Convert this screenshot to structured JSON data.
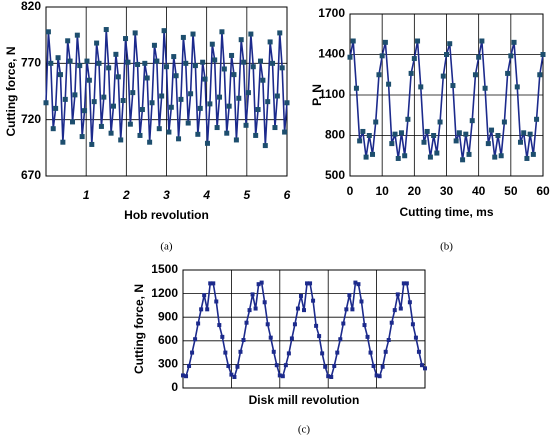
{
  "chart_data": [
    {
      "type": "line",
      "caption": "(a)",
      "xlabel": "Hob revolution",
      "ylabel": "Cutting force, N",
      "xlim": [
        0,
        6
      ],
      "xticks": [
        1,
        2,
        3,
        4,
        5,
        6
      ],
      "xtick_italic": true,
      "ylim": [
        670,
        820
      ],
      "yticks": [
        670,
        720,
        770,
        820
      ],
      "grid": true,
      "series": [
        {
          "name": null,
          "color": "#1c2a8c",
          "marker_color": "#1d4e6e",
          "x": [
            0,
            0.06,
            0.12,
            0.18,
            0.24,
            0.3,
            0.36,
            0.42,
            0.48,
            0.54,
            0.6,
            0.66,
            0.72,
            0.78,
            0.84,
            0.9,
            0.96,
            1.02,
            1.08,
            1.14,
            1.2,
            1.26,
            1.32,
            1.38,
            1.44,
            1.5,
            1.56,
            1.62,
            1.68,
            1.74,
            1.8,
            1.86,
            1.92,
            1.98,
            2.04,
            2.1,
            2.16,
            2.22,
            2.28,
            2.34,
            2.4,
            2.46,
            2.52,
            2.58,
            2.64,
            2.7,
            2.76,
            2.82,
            2.88,
            2.94,
            3,
            3.06,
            3.12,
            3.18,
            3.24,
            3.3,
            3.36,
            3.42,
            3.48,
            3.54,
            3.6,
            3.66,
            3.72,
            3.78,
            3.84,
            3.9,
            3.96,
            4.02,
            4.08,
            4.14,
            4.2,
            4.26,
            4.32,
            4.38,
            4.44,
            4.5,
            4.56,
            4.62,
            4.68,
            4.74,
            4.8,
            4.86,
            4.92,
            4.98,
            5.04,
            5.1,
            5.16,
            5.22,
            5.28,
            5.34,
            5.4,
            5.46,
            5.52,
            5.58,
            5.64,
            5.7,
            5.76,
            5.82,
            5.88,
            5.94,
            6
          ],
          "values": [
            735,
            798,
            770,
            712,
            730,
            775,
            760,
            700,
            738,
            790,
            772,
            718,
            742,
            795,
            768,
            705,
            728,
            772,
            755,
            698,
            736,
            788,
            770,
            714,
            740,
            800,
            766,
            708,
            732,
            778,
            758,
            702,
            737,
            792,
            771,
            716,
            744,
            797,
            769,
            706,
            729,
            770,
            757,
            700,
            735,
            786,
            772,
            712,
            741,
            799,
            767,
            709,
            731,
            776,
            759,
            703,
            738,
            793,
            770,
            717,
            743,
            796,
            768,
            707,
            730,
            771,
            756,
            699,
            734,
            787,
            773,
            713,
            740,
            798,
            765,
            708,
            732,
            777,
            760,
            702,
            739,
            791,
            771,
            715,
            744,
            796,
            767,
            706,
            729,
            772,
            755,
            697,
            736,
            789,
            770,
            713,
            741,
            797,
            766,
            709,
            735
          ]
        }
      ]
    },
    {
      "type": "line",
      "caption": "(b)",
      "xlabel": "Cutting time, ms",
      "ylabel": "P, N",
      "xlim": [
        0,
        60
      ],
      "xticks": [
        0,
        10,
        20,
        30,
        40,
        50,
        60
      ],
      "ylim": [
        500,
        1700
      ],
      "yticks": [
        500,
        800,
        1100,
        1400,
        1700
      ],
      "grid": true,
      "series": [
        {
          "name": null,
          "color": "#1c2a8c",
          "marker_color": "#1d4e6e",
          "x": [
            0,
            1,
            2,
            3,
            4,
            5,
            6,
            7,
            8,
            9,
            10,
            11,
            12,
            13,
            14,
            15,
            16,
            17,
            18,
            19,
            20,
            21,
            22,
            23,
            24,
            25,
            26,
            27,
            28,
            29,
            30,
            31,
            32,
            33,
            34,
            35,
            36,
            37,
            38,
            39,
            40,
            41,
            42,
            43,
            44,
            45,
            46,
            47,
            48,
            49,
            50,
            51,
            52,
            53,
            54,
            55,
            56,
            57,
            58,
            59,
            60
          ],
          "values": [
            1380,
            1500,
            1150,
            760,
            830,
            640,
            800,
            660,
            900,
            1250,
            1390,
            1490,
            1180,
            740,
            810,
            630,
            820,
            650,
            920,
            1260,
            1370,
            1500,
            1160,
            750,
            830,
            640,
            800,
            670,
            900,
            1240,
            1400,
            1480,
            1170,
            760,
            820,
            620,
            810,
            660,
            910,
            1250,
            1380,
            1500,
            1150,
            740,
            840,
            640,
            800,
            650,
            900,
            1260,
            1390,
            1490,
            1160,
            750,
            820,
            630,
            810,
            660,
            920,
            1250,
            1400
          ]
        }
      ]
    },
    {
      "type": "line",
      "caption": "(c)",
      "xlabel": "Disk mill revolution",
      "ylabel": "Cutting force, N",
      "xlim": [
        0,
        100
      ],
      "xticks": [
        0,
        20,
        40,
        60,
        80,
        100
      ],
      "xtick_labels": false,
      "ylim": [
        0,
        1500
      ],
      "yticks": [
        0,
        300,
        600,
        900,
        1200,
        1500
      ],
      "grid": true,
      "series": [
        {
          "name": null,
          "color": "#1c2a8c",
          "marker_color": "#1c2a8c",
          "x": [
            0,
            1.25,
            2.5,
            3.75,
            5,
            6.25,
            7.5,
            8.75,
            10,
            11.25,
            12.5,
            13.75,
            15,
            16.25,
            17.5,
            18.75,
            20,
            21.25,
            22.5,
            23.75,
            25,
            26.25,
            27.5,
            28.75,
            30,
            31.25,
            32.5,
            33.75,
            35,
            36.25,
            37.5,
            38.75,
            40,
            41.25,
            42.5,
            43.75,
            45,
            46.25,
            47.5,
            48.75,
            50,
            51.25,
            52.5,
            53.75,
            55,
            56.25,
            57.5,
            58.75,
            60,
            61.25,
            62.5,
            63.75,
            65,
            66.25,
            67.5,
            68.75,
            70,
            71.25,
            72.5,
            73.75,
            75,
            76.25,
            77.5,
            78.75,
            80,
            81.25,
            82.5,
            83.75,
            85,
            86.25,
            87.5,
            88.75,
            90,
            91.25,
            92.5,
            93.75,
            95,
            96.25,
            97.5,
            98.75,
            100
          ],
          "values": [
            160,
            150,
            280,
            450,
            620,
            820,
            1000,
            1180,
            1000,
            1330,
            1330,
            1100,
            800,
            650,
            450,
            280,
            170,
            140,
            270,
            460,
            610,
            830,
            990,
            1190,
            1010,
            1320,
            1340,
            1090,
            810,
            640,
            460,
            290,
            160,
            150,
            290,
            440,
            630,
            810,
            1010,
            1170,
            990,
            1330,
            1330,
            1110,
            790,
            660,
            440,
            270,
            150,
            140,
            280,
            450,
            620,
            820,
            1000,
            1180,
            1000,
            1340,
            1320,
            1100,
            800,
            650,
            450,
            280,
            160,
            150,
            270,
            460,
            610,
            830,
            990,
            1190,
            1010,
            1330,
            1330,
            1090,
            810,
            640,
            460,
            290,
            250
          ]
        }
      ]
    }
  ]
}
